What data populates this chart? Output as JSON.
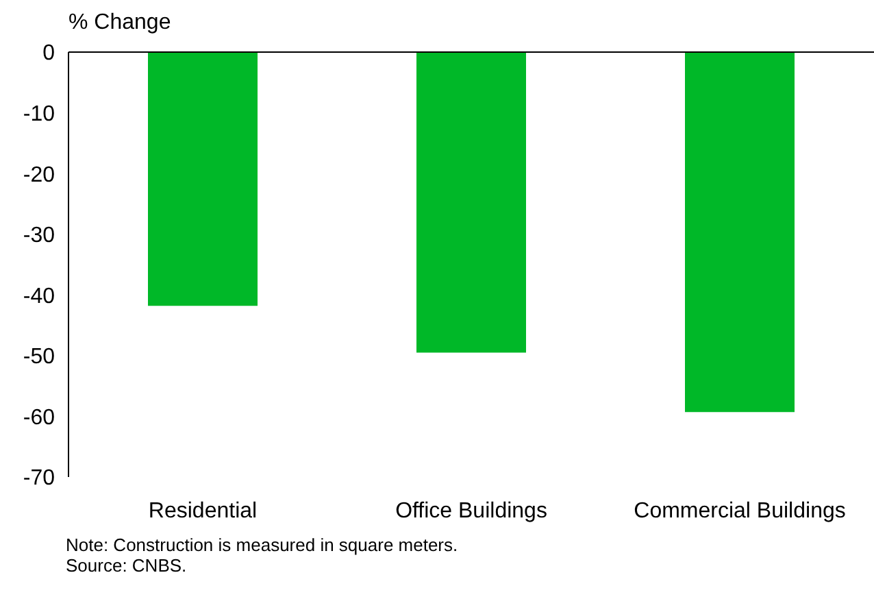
{
  "chart_data": {
    "type": "bar",
    "ylabel": "% Change",
    "categories": [
      "Residential",
      "Office Buildings",
      "Commercial Buildings"
    ],
    "values": [
      -41.8,
      -49.5,
      -59.3
    ],
    "color": "#00b828",
    "ylim": [
      -70,
      0
    ],
    "yticks": [
      -70,
      -60,
      -50,
      -40,
      -30,
      -20,
      -10,
      0
    ],
    "grid": false,
    "annotations": [
      "Note: Construction is measured in square meters.",
      "Source: CNBS."
    ]
  }
}
